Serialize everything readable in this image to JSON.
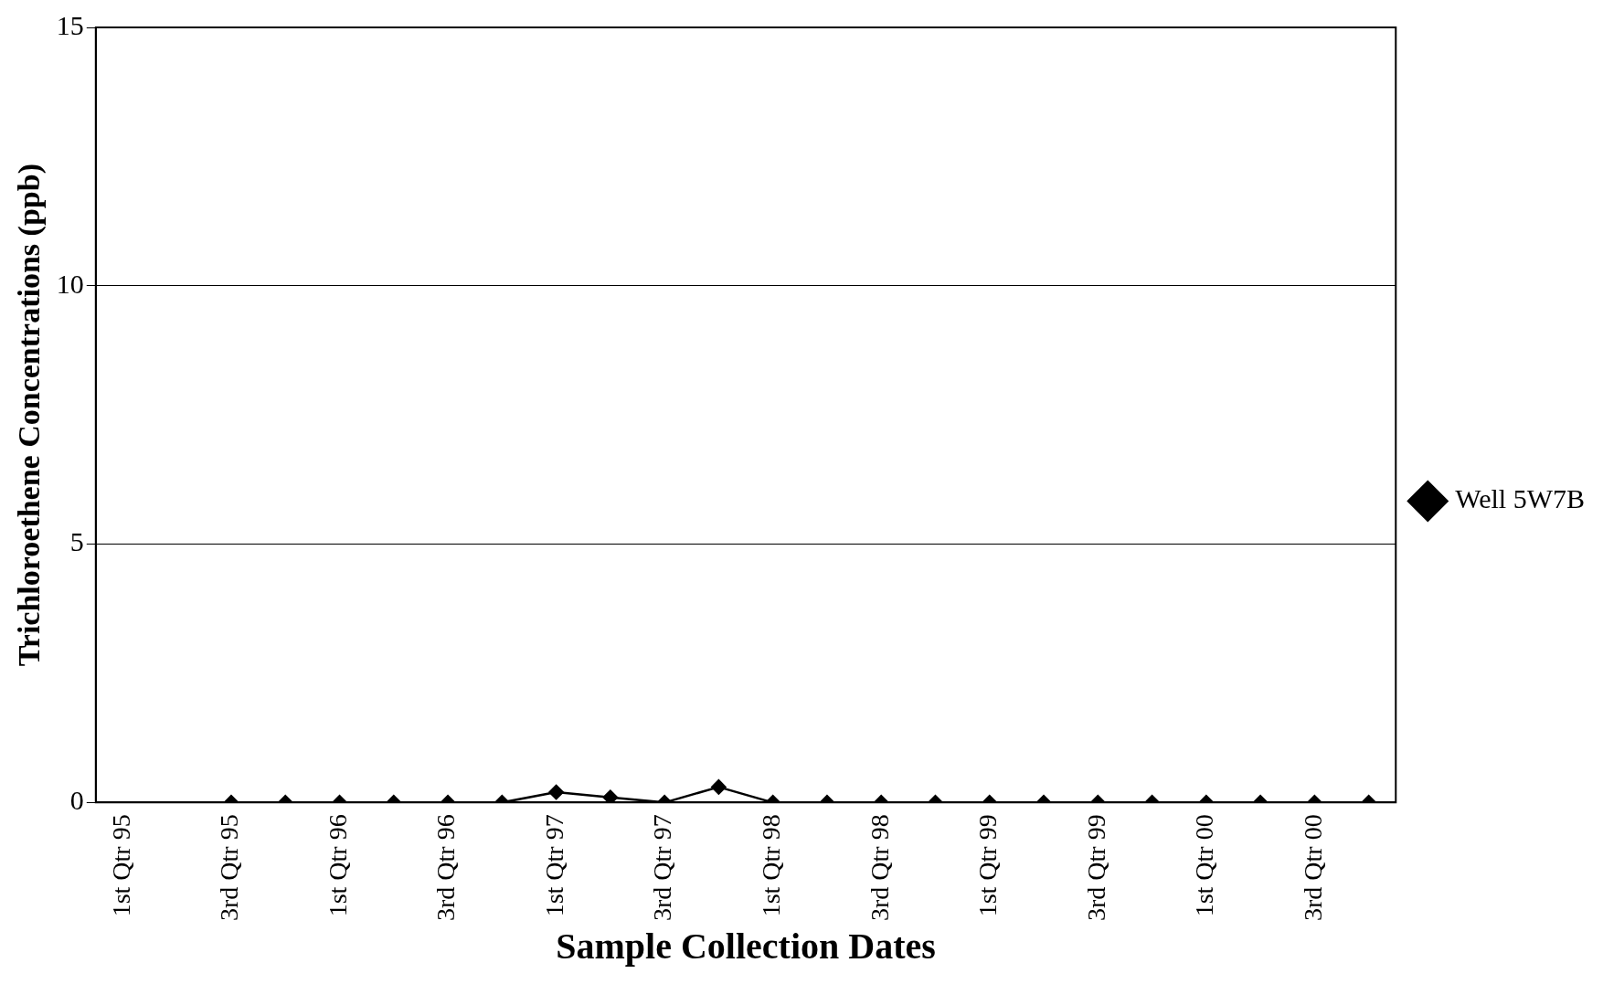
{
  "chart_data": {
    "type": "line",
    "xlabel": "Sample Collection Dates",
    "ylabel": "Trichloroethene Concentrations (ppb)",
    "categories": [
      "1st Qtr 95",
      null,
      "3rd Qtr 95",
      null,
      "1st Qtr 96",
      null,
      "3rd Qtr 96",
      null,
      "1st Qtr 97",
      null,
      "3rd Qtr 97",
      null,
      "1st Qtr 98",
      null,
      "3rd Qtr 98",
      null,
      "1st Qtr 99",
      null,
      "3rd Qtr 99",
      null,
      "1st Qtr 00",
      null,
      "3rd Qtr 00",
      null
    ],
    "series": [
      {
        "name": "Well 5W7B",
        "color": "#000000",
        "values": [
          null,
          null,
          0,
          0,
          0,
          0,
          0,
          0,
          0.2,
          0.1,
          0,
          0.3,
          0,
          0,
          0,
          0,
          0,
          0,
          0,
          0,
          0,
          0,
          0,
          0
        ]
      }
    ],
    "ylim": [
      0,
      15
    ],
    "yticks": [
      0,
      5,
      10,
      15
    ],
    "grid": "y",
    "legend": "right",
    "marker": "diamond",
    "line_style": "solid"
  }
}
